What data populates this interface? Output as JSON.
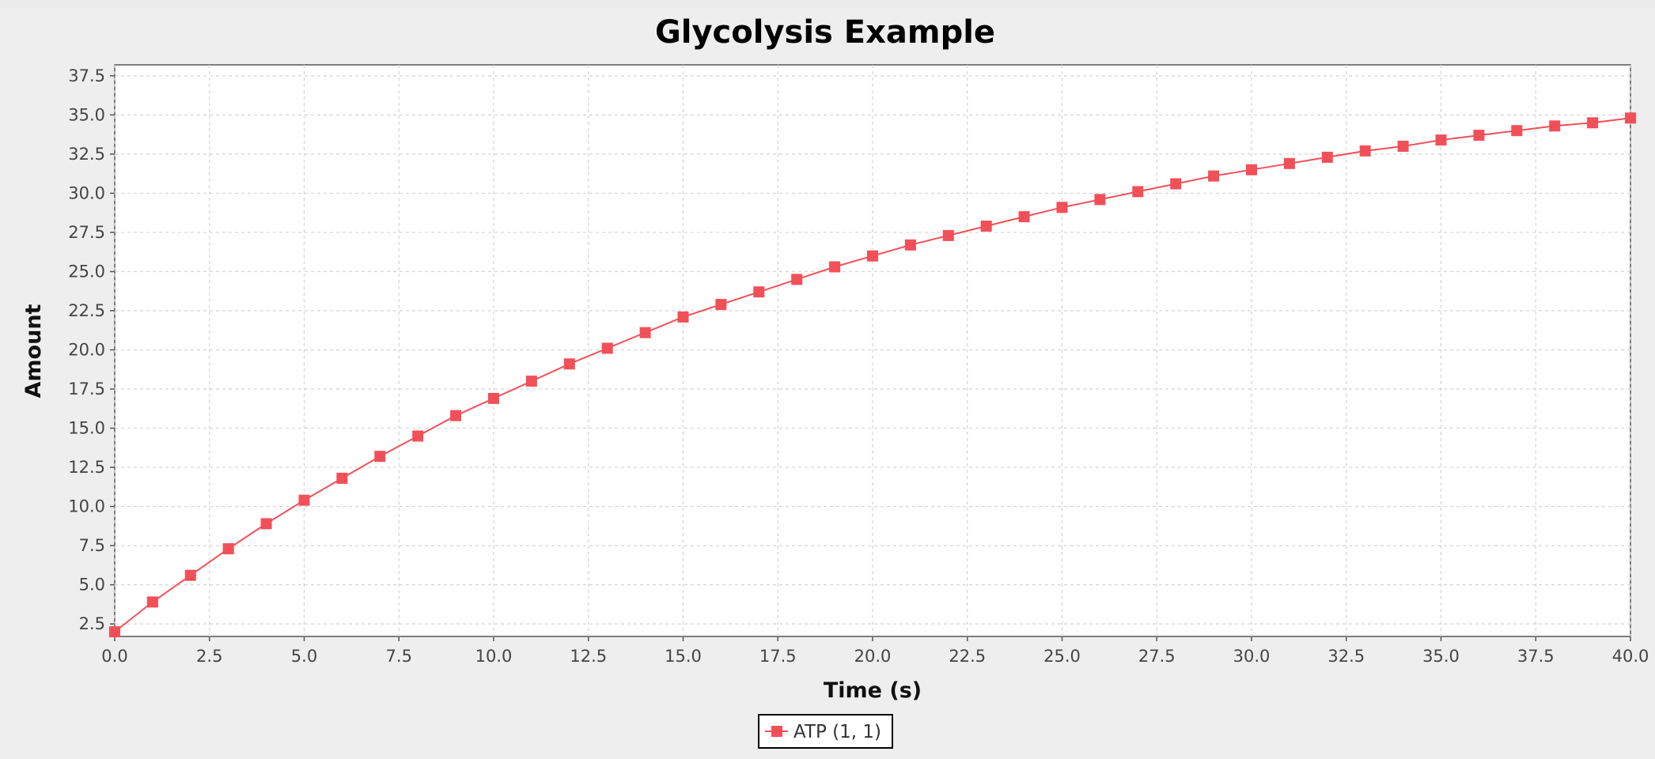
{
  "chart_data": {
    "type": "line",
    "title": "Glycolysis Example",
    "xlabel": "Time (s)",
    "ylabel": "Amount",
    "xlim": [
      0,
      40
    ],
    "ylim": [
      1.7,
      38.2
    ],
    "x_ticks": [
      "0.0",
      "2.5",
      "5.0",
      "7.5",
      "10.0",
      "12.5",
      "15.0",
      "17.5",
      "20.0",
      "22.5",
      "25.0",
      "27.5",
      "30.0",
      "32.5",
      "35.0",
      "37.5",
      "40.0"
    ],
    "y_ticks": [
      "2.5",
      "5.0",
      "7.5",
      "10.0",
      "12.5",
      "15.0",
      "17.5",
      "20.0",
      "22.5",
      "25.0",
      "27.5",
      "30.0",
      "32.5",
      "35.0",
      "37.5"
    ],
    "grid": true,
    "legend_position": "bottom-center",
    "series": [
      {
        "name": "ATP (1, 1)",
        "color": "#f25059",
        "marker": "square",
        "x": [
          0,
          1,
          2,
          3,
          4,
          5,
          6,
          7,
          8,
          9,
          10,
          11,
          12,
          13,
          14,
          15,
          16,
          17,
          18,
          19,
          20,
          21,
          22,
          23,
          24,
          25,
          26,
          27,
          28,
          29,
          30,
          31,
          32,
          33,
          34,
          35,
          36,
          37,
          38,
          39,
          40
        ],
        "y": [
          2.0,
          3.9,
          5.6,
          7.3,
          8.9,
          10.4,
          11.8,
          13.2,
          14.5,
          15.8,
          16.9,
          18.0,
          19.1,
          20.1,
          21.1,
          22.1,
          22.9,
          23.7,
          24.5,
          25.3,
          26.0,
          26.7,
          27.3,
          27.9,
          28.5,
          29.1,
          29.6,
          30.1,
          30.6,
          31.1,
          31.5,
          31.9,
          32.3,
          32.7,
          33.0,
          33.4,
          33.7,
          34.0,
          34.3,
          34.5,
          34.8
        ]
      }
    ]
  }
}
